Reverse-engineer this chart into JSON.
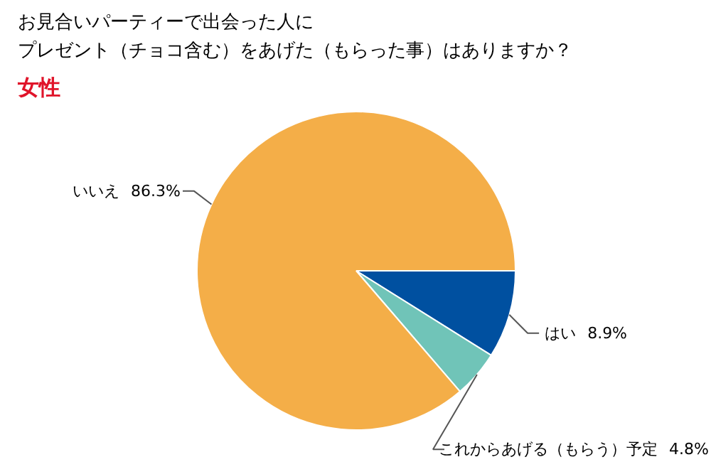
{
  "chart_data": {
    "type": "pie",
    "title": "お見合いパーティーで出会った人に",
    "subtitle": "プレゼント（チョコ含む）をあげた（もらった事）はありますか？",
    "annotations": [
      "女性"
    ],
    "categories": [
      "はい",
      "これからあげる（もらう）予定",
      "いいえ"
    ],
    "values": [
      8.9,
      4.8,
      86.3
    ],
    "colors": [
      "#0050a0",
      "#70c4b8",
      "#f4ae48"
    ],
    "value_labels": [
      "8.9%",
      "4.8%",
      "86.3%"
    ]
  }
}
